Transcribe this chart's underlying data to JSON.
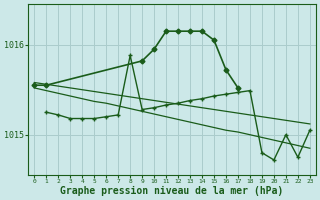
{
  "background_color": "#cce8e8",
  "plot_bg_color": "#cce8e8",
  "grid_color": "#aacccc",
  "line_color": "#1a5c1a",
  "xlabel": "Graphe pression niveau de la mer (hPa)",
  "xlabel_fontsize": 7,
  "yticks": [
    1015,
    1016
  ],
  "xlim": [
    -0.5,
    23.5
  ],
  "ylim": [
    1014.55,
    1016.45
  ],
  "series": [
    {
      "x": [
        0,
        1,
        9,
        10,
        11,
        12,
        13,
        14,
        15,
        16,
        17
      ],
      "y": [
        1015.55,
        1015.55,
        1015.82,
        1015.95,
        1016.15,
        1016.15,
        1016.15,
        1016.15,
        1016.05,
        1015.72,
        1015.52
      ],
      "marker": "D",
      "markersize": 2.5,
      "linewidth": 1.2,
      "linestyle": "-"
    },
    {
      "x": [
        1,
        2,
        3,
        4,
        5,
        6,
        7,
        8,
        9,
        10,
        11,
        12,
        13,
        14,
        15,
        16,
        17,
        18,
        19,
        20,
        21,
        22,
        23
      ],
      "y": [
        1015.25,
        1015.22,
        1015.18,
        1015.18,
        1015.18,
        1015.2,
        1015.22,
        1015.88,
        1015.28,
        1015.3,
        1015.33,
        1015.35,
        1015.38,
        1015.4,
        1015.43,
        1015.45,
        1015.47,
        1015.49,
        1014.8,
        1014.72,
        1015.0,
        1014.75,
        1015.05
      ],
      "marker": "+",
      "markersize": 3.5,
      "linewidth": 1.0,
      "linestyle": "-"
    },
    {
      "x": [
        0,
        1,
        2,
        3,
        4,
        5,
        6,
        7,
        8,
        9,
        10,
        11,
        12,
        13,
        14,
        15,
        16,
        17,
        18,
        19,
        20,
        21,
        22,
        23
      ],
      "y": [
        1015.58,
        1015.56,
        1015.54,
        1015.52,
        1015.5,
        1015.48,
        1015.46,
        1015.44,
        1015.42,
        1015.4,
        1015.38,
        1015.36,
        1015.34,
        1015.32,
        1015.3,
        1015.28,
        1015.26,
        1015.24,
        1015.22,
        1015.2,
        1015.18,
        1015.16,
        1015.14,
        1015.12
      ],
      "marker": null,
      "markersize": 0,
      "linewidth": 0.9,
      "linestyle": "-"
    },
    {
      "x": [
        0,
        1,
        2,
        3,
        4,
        5,
        6,
        7,
        8,
        9,
        10,
        11,
        12,
        13,
        14,
        15,
        16,
        17,
        18,
        19,
        20,
        21,
        22,
        23
      ],
      "y": [
        1015.52,
        1015.49,
        1015.46,
        1015.43,
        1015.4,
        1015.37,
        1015.35,
        1015.32,
        1015.29,
        1015.26,
        1015.23,
        1015.2,
        1015.17,
        1015.14,
        1015.11,
        1015.08,
        1015.05,
        1015.03,
        1015.0,
        1014.97,
        1014.94,
        1014.91,
        1014.88,
        1014.85
      ],
      "marker": null,
      "markersize": 0,
      "linewidth": 0.9,
      "linestyle": "-"
    }
  ]
}
